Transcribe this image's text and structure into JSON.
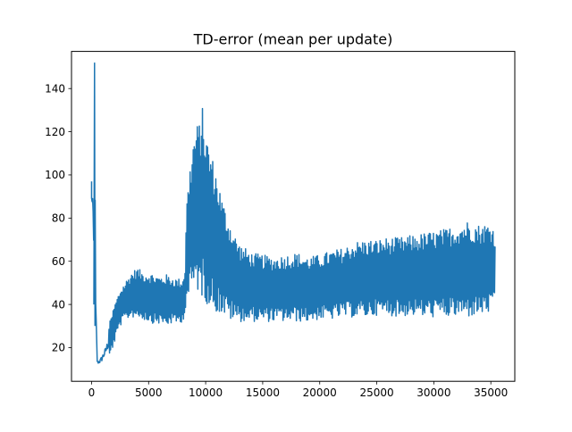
{
  "chart_data": {
    "type": "line",
    "title": "TD-error (mean per update)",
    "xlabel": "",
    "ylabel": "",
    "xlim": [
      -1760,
      37100
    ],
    "ylim": [
      4.4,
      157.2
    ],
    "xticks": [
      0,
      5000,
      10000,
      15000,
      20000,
      25000,
      30000,
      35000
    ],
    "yticks": [
      20,
      40,
      60,
      80,
      100,
      120,
      140
    ],
    "grid": false,
    "legend": "none",
    "series": [
      {
        "color": "#1f77b4",
        "upper_envelope": {
          "x": [
            0,
            100,
            200,
            250,
            300,
            350,
            500,
            800,
            1200,
            1600,
            2000,
            2500,
            3000,
            3500,
            4000,
            4500,
            5000,
            5500,
            6000,
            6500,
            7000,
            7500,
            8000,
            8200,
            8300,
            8500,
            8800,
            9000,
            9200,
            9500,
            9700,
            10000,
            10500,
            11000,
            11500,
            12000,
            12500,
            13000,
            14000,
            15000,
            16000,
            17000,
            18000,
            19000,
            20000,
            21000,
            22000,
            23000,
            24000,
            25000,
            26000,
            27000,
            28000,
            29000,
            30000,
            31000,
            32000,
            33000,
            34000,
            35000,
            35400
          ],
          "y": [
            97,
            95,
            85,
            150,
            152,
            60,
            15,
            18,
            24,
            32,
            40,
            47,
            51,
            55,
            57,
            55,
            55,
            54,
            53,
            54,
            53,
            52,
            52,
            58,
            85,
            98,
            112,
            120,
            123,
            125,
            132,
            120,
            110,
            100,
            88,
            80,
            73,
            68,
            64,
            63,
            62,
            63,
            64,
            62,
            63,
            65,
            66,
            69,
            70,
            70,
            71,
            71,
            72,
            73,
            74,
            75,
            77,
            79,
            77,
            78,
            74
          ]
        },
        "lower_envelope": {
          "x": [
            0,
            100,
            200,
            250,
            300,
            350,
            500,
            800,
            1200,
            1600,
            2000,
            2500,
            3000,
            3500,
            4000,
            4500,
            5000,
            5500,
            6000,
            6500,
            7000,
            7500,
            8000,
            8200,
            8300,
            8500,
            8800,
            9000,
            9200,
            9500,
            9700,
            10000,
            10500,
            11000,
            11500,
            12000,
            12500,
            13000,
            14000,
            15000,
            16000,
            17000,
            18000,
            19000,
            20000,
            21000,
            22000,
            23000,
            24000,
            25000,
            26000,
            27000,
            28000,
            29000,
            30000,
            31000,
            32000,
            33000,
            34000,
            35000,
            35400
          ],
          "y": [
            80,
            82,
            40,
            30,
            35,
            20,
            11,
            10,
            12,
            16,
            22,
            30,
            33,
            34,
            34,
            33,
            32,
            31,
            31,
            30,
            31,
            31,
            32,
            36,
            40,
            42,
            45,
            47,
            47,
            44,
            43,
            41,
            38,
            36,
            35,
            33,
            32,
            32,
            32,
            32,
            32,
            32,
            32,
            32,
            33,
            33,
            34,
            34,
            34,
            35,
            35,
            34,
            35,
            34,
            34,
            34,
            34,
            34,
            35,
            36,
            38
          ]
        }
      }
    ]
  }
}
